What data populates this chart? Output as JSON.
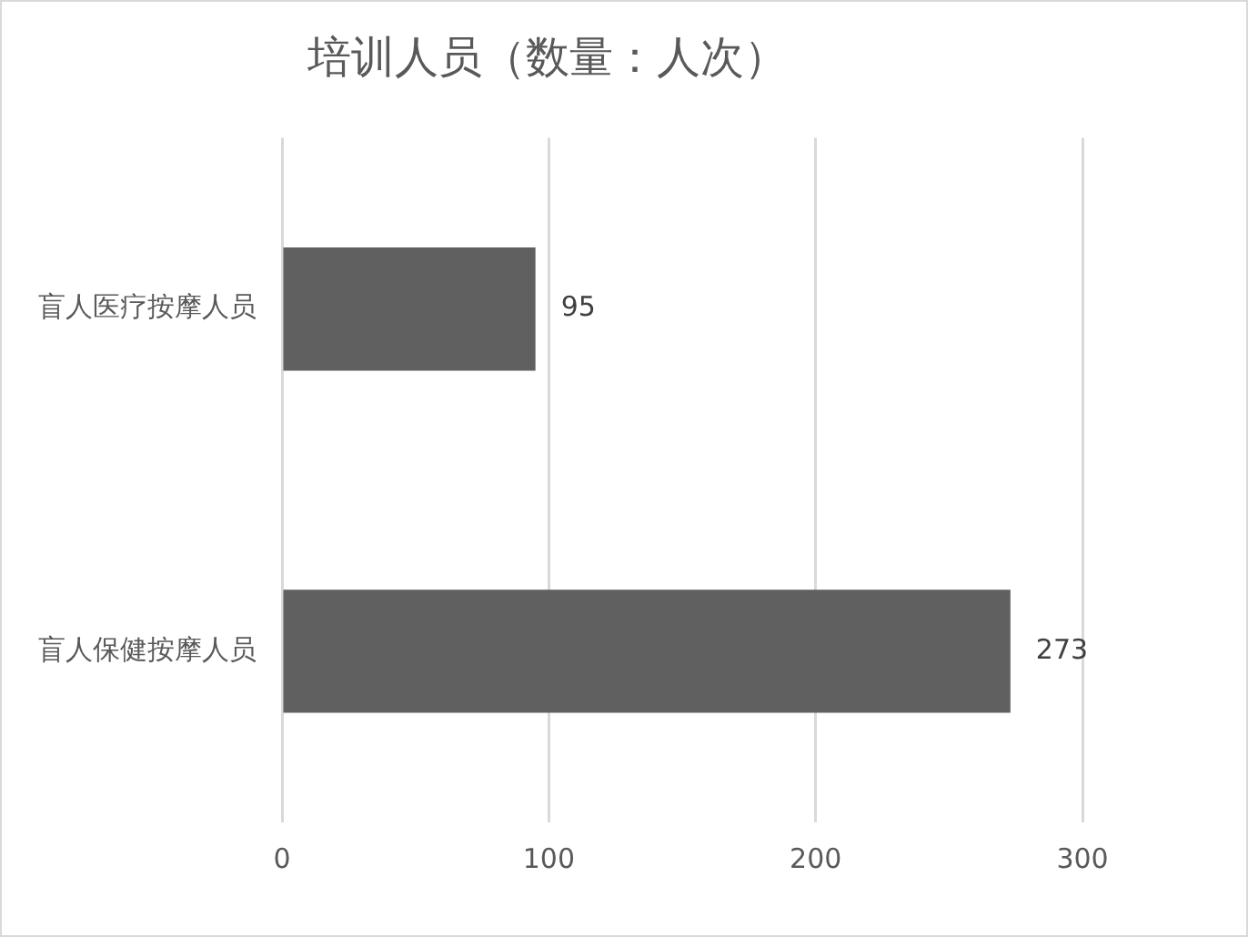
{
  "chart_data": {
    "type": "bar",
    "title": "培训人员（数量：人次）",
    "orientation": "horizontal",
    "categories": [
      "盲人医疗按摩人员",
      "盲人保健按摩人员"
    ],
    "values": [
      95,
      273
    ],
    "color": "#606060",
    "xlim": [
      0,
      300
    ],
    "xticks": [
      0,
      100,
      200,
      300
    ],
    "grid": "x",
    "data_labels": true,
    "legend": false
  }
}
